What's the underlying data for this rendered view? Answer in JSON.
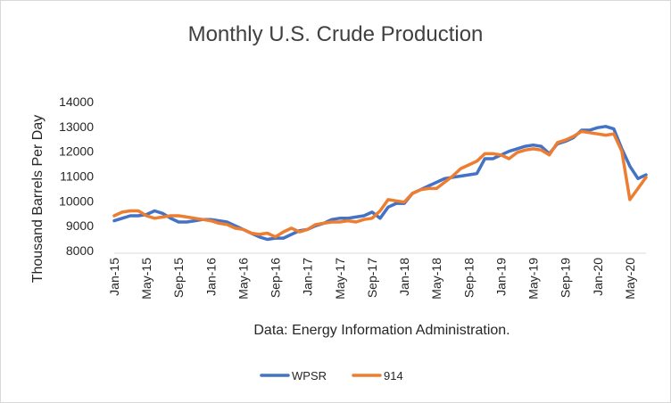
{
  "chart_data": {
    "type": "line",
    "title": "Monthly U.S. Crude Production",
    "ylabel": "Thousand Barrels Per Day",
    "xlabel": "",
    "note": "Data: Energy Information Administration.",
    "ylim": [
      8000,
      14000
    ],
    "yticks": [
      8000,
      9000,
      10000,
      11000,
      12000,
      13000,
      14000
    ],
    "ytick_labels": [
      "8000",
      "9000",
      "10000",
      "11000",
      "12000",
      "13000",
      "14000"
    ],
    "grid": false,
    "legend_position": "bottom",
    "x": [
      "Jan-15",
      "Feb-15",
      "Mar-15",
      "Apr-15",
      "May-15",
      "Jun-15",
      "Jul-15",
      "Aug-15",
      "Sep-15",
      "Oct-15",
      "Nov-15",
      "Dec-15",
      "Jan-16",
      "Feb-16",
      "Mar-16",
      "Apr-16",
      "May-16",
      "Jun-16",
      "Jul-16",
      "Aug-16",
      "Sep-16",
      "Oct-16",
      "Nov-16",
      "Dec-16",
      "Jan-17",
      "Feb-17",
      "Mar-17",
      "Apr-17",
      "May-17",
      "Jun-17",
      "Jul-17",
      "Aug-17",
      "Sep-17",
      "Oct-17",
      "Nov-17",
      "Dec-17",
      "Jan-18",
      "Feb-18",
      "Mar-18",
      "Apr-18",
      "May-18",
      "Jun-18",
      "Jul-18",
      "Aug-18",
      "Sep-18",
      "Oct-18",
      "Nov-18",
      "Dec-18",
      "Jan-19",
      "Feb-19",
      "Mar-19",
      "Apr-19",
      "May-19",
      "Jun-19",
      "Jul-19",
      "Aug-19",
      "Sep-19",
      "Oct-19",
      "Nov-19",
      "Dec-19",
      "Jan-20",
      "Feb-20",
      "Mar-20",
      "Apr-20",
      "May-20",
      "Jun-20",
      "Jul-20"
    ],
    "x_tick_labels": [
      "Jan-15",
      "May-15",
      "Sep-15",
      "Jan-16",
      "May-16",
      "Sep-16",
      "Jan-17",
      "May-17",
      "Sep-17",
      "Jan-18",
      "May-18",
      "Sep-18",
      "Jan-19",
      "May-19",
      "Sep-19",
      "Jan-20",
      "May-20"
    ],
    "series": [
      {
        "name": "WPSR",
        "color": "#4472C4",
        "values": [
          9200,
          9300,
          9400,
          9400,
          9450,
          9600,
          9500,
          9300,
          9150,
          9150,
          9200,
          9250,
          9250,
          9200,
          9150,
          9000,
          8850,
          8700,
          8550,
          8450,
          8500,
          8500,
          8650,
          8800,
          8850,
          9000,
          9100,
          9250,
          9300,
          9300,
          9350,
          9400,
          9550,
          9300,
          9750,
          9900,
          9900,
          10300,
          10450,
          10600,
          10750,
          10900,
          10950,
          11000,
          11050,
          11100,
          11700,
          11700,
          11850,
          12000,
          12100,
          12200,
          12250,
          12200,
          11900,
          12300,
          12400,
          12550,
          12850,
          12850,
          12950,
          13000,
          12900,
          12100,
          11400,
          10900,
          11050
        ]
      },
      {
        "name": "914",
        "color": "#ED7D31",
        "values": [
          9400,
          9550,
          9600,
          9600,
          9400,
          9300,
          9350,
          9400,
          9400,
          9350,
          9300,
          9250,
          9200,
          9100,
          9050,
          8900,
          8850,
          8700,
          8650,
          8700,
          8550,
          8750,
          8900,
          8750,
          8850,
          9050,
          9100,
          9150,
          9150,
          9200,
          9150,
          9250,
          9300,
          9600,
          10050,
          10000,
          9950,
          10300,
          10450,
          10500,
          10500,
          10750,
          11000,
          11300,
          11450,
          11600,
          11900,
          11900,
          11850,
          11700,
          11950,
          12050,
          12100,
          12050,
          11850,
          12350,
          12450,
          12600,
          12800,
          12750,
          12700,
          12650,
          12700,
          12000,
          10050,
          10500,
          10950
        ]
      }
    ]
  }
}
